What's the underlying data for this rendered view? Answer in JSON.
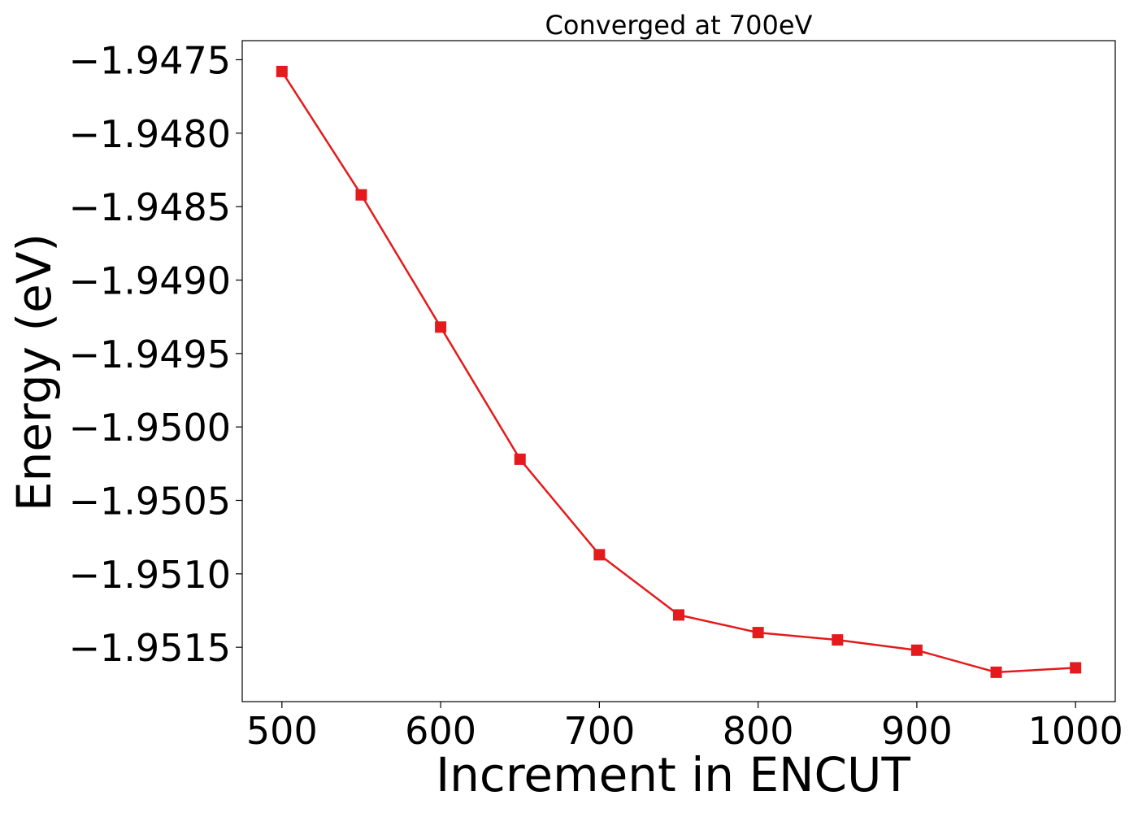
{
  "chart_data": {
    "type": "line",
    "title": "Converged at 700eV",
    "xlabel": "Increment in ENCUT",
    "ylabel": "Energy (eV)",
    "xlim": [
      475,
      1025
    ],
    "ylim": [
      -1.95187,
      -1.94737
    ],
    "xticks": [
      500,
      600,
      700,
      800,
      900,
      1000
    ],
    "xtick_labels": [
      "500",
      "600",
      "700",
      "800",
      "900",
      "1000"
    ],
    "yticks": [
      -1.9475,
      -1.948,
      -1.9485,
      -1.949,
      -1.9495,
      -1.95,
      -1.9505,
      -1.951,
      -1.9515
    ],
    "ytick_labels": [
      "−1.9475",
      "−1.9480",
      "−1.9485",
      "−1.9490",
      "−1.9495",
      "−1.9500",
      "−1.9505",
      "−1.9510",
      "−1.9515"
    ],
    "grid": false,
    "series": [
      {
        "color": "#e41a1c",
        "marker": "square",
        "x": [
          500,
          550,
          600,
          650,
          700,
          750,
          800,
          850,
          900,
          950,
          1000
        ],
        "y": [
          -1.94758,
          -1.94842,
          -1.94932,
          -1.95022,
          -1.95087,
          -1.95128,
          -1.9514,
          -1.95145,
          -1.95152,
          -1.95167,
          -1.95164
        ]
      }
    ]
  }
}
